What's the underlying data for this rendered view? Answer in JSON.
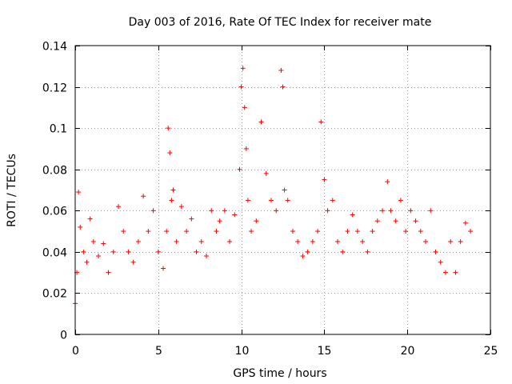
{
  "chart_data": {
    "type": "scatter",
    "title": "Day 003 of 2016, Rate Of TEC Index for receiver mate",
    "xlabel": "GPS time / hours",
    "ylabel": "ROTI / TECUs",
    "xlim": [
      0,
      25
    ],
    "ylim": [
      0,
      0.14
    ],
    "xticks": [
      0,
      5,
      10,
      15,
      20,
      25
    ],
    "xtick_labels": [
      "0",
      "5",
      "10",
      "15",
      "20",
      "25"
    ],
    "yticks": [
      0,
      0.02,
      0.04,
      0.06,
      0.08,
      0.1,
      0.12,
      0.14
    ],
    "ytick_labels": [
      "0",
      "0.02",
      "0.04",
      "0.06",
      "0.08",
      "0.1",
      "0.12",
      "0.14"
    ],
    "grid": true,
    "marker": "+",
    "color": "#ff0000",
    "series": [
      {
        "name": "ROTI",
        "x": [
          0.0,
          0.1,
          0.2,
          0.3,
          0.5,
          0.7,
          0.9,
          1.1,
          1.4,
          1.7,
          2.0,
          2.3,
          2.6,
          2.9,
          3.2,
          3.5,
          3.8,
          4.1,
          4.4,
          4.7,
          5.0,
          5.3,
          5.5,
          5.6,
          5.7,
          5.8,
          5.9,
          6.1,
          6.4,
          6.7,
          7.0,
          7.3,
          7.6,
          7.9,
          8.2,
          8.5,
          8.7,
          9.0,
          9.3,
          9.6,
          9.9,
          10.0,
          10.1,
          10.2,
          10.3,
          10.4,
          10.6,
          10.9,
          11.2,
          11.5,
          11.8,
          12.1,
          12.4,
          12.5,
          12.6,
          12.8,
          13.1,
          13.4,
          13.7,
          14.0,
          14.3,
          14.6,
          14.8,
          15.0,
          15.2,
          15.5,
          15.8,
          16.1,
          16.4,
          16.7,
          17.0,
          17.3,
          17.6,
          17.9,
          18.2,
          18.5,
          18.8,
          19.0,
          19.3,
          19.6,
          19.9,
          20.2,
          20.5,
          20.8,
          21.1,
          21.4,
          21.7,
          22.0,
          22.3,
          22.6,
          22.9,
          23.2,
          23.5,
          23.8
        ],
        "y": [
          0.015,
          0.03,
          0.069,
          0.052,
          0.04,
          0.035,
          0.056,
          0.045,
          0.038,
          0.044,
          0.03,
          0.04,
          0.062,
          0.05,
          0.04,
          0.035,
          0.045,
          0.067,
          0.05,
          0.06,
          0.04,
          0.032,
          0.05,
          0.1,
          0.088,
          0.065,
          0.07,
          0.045,
          0.062,
          0.05,
          0.056,
          0.04,
          0.045,
          0.038,
          0.06,
          0.05,
          0.055,
          0.06,
          0.045,
          0.058,
          0.08,
          0.12,
          0.129,
          0.11,
          0.09,
          0.065,
          0.05,
          0.055,
          0.103,
          0.078,
          0.065,
          0.06,
          0.128,
          0.12,
          0.07,
          0.065,
          0.05,
          0.045,
          0.038,
          0.04,
          0.045,
          0.05,
          0.103,
          0.075,
          0.06,
          0.065,
          0.045,
          0.04,
          0.05,
          0.058,
          0.05,
          0.045,
          0.04,
          0.05,
          0.055,
          0.06,
          0.074,
          0.06,
          0.055,
          0.065,
          0.05,
          0.06,
          0.055,
          0.05,
          0.045,
          0.06,
          0.04,
          0.035,
          0.03,
          0.045,
          0.03,
          0.045,
          0.054,
          0.05
        ]
      }
    ]
  }
}
